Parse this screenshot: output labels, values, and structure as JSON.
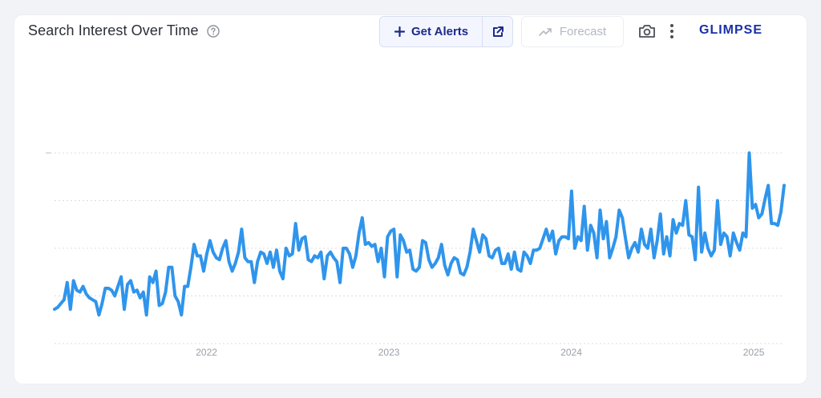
{
  "header": {
    "title": "Search Interest Over Time",
    "get_alerts_label": "Get Alerts",
    "forecast_label": "Forecast",
    "brand": "GLIMPSE"
  },
  "icons": {
    "help": "help-circle-icon",
    "plus": "plus-icon",
    "external": "external-link-icon",
    "forecast": "trend-up-icon",
    "camera": "camera-icon",
    "more": "more-vertical-icon"
  },
  "colors": {
    "line": "#2f95ec",
    "accent": "#1c2a8a",
    "brand": "#1a2fa8"
  },
  "chart_data": {
    "type": "line",
    "x_ticks": [
      "2022",
      "2023",
      "2024",
      "2025"
    ],
    "x_range": [
      "2021-03",
      "2025-03"
    ],
    "ylim": [
      0,
      100
    ],
    "grid": true,
    "series": [
      {
        "values": [
          18,
          19,
          21,
          23,
          32,
          18,
          33,
          28,
          27,
          30,
          26,
          24,
          23,
          22,
          15,
          21,
          29,
          29,
          28,
          25,
          30,
          35,
          18,
          31,
          33,
          27,
          28,
          24,
          27,
          15,
          35,
          32,
          38,
          20,
          21,
          27,
          40,
          40,
          25,
          22,
          15,
          30,
          30,
          40,
          52,
          46,
          46,
          38,
          47,
          54,
          48,
          45,
          44,
          50,
          54,
          43,
          38,
          42,
          48,
          60,
          45,
          43,
          43,
          32,
          43,
          48,
          47,
          42,
          48,
          40,
          49,
          38,
          34,
          50,
          46,
          47,
          63,
          49,
          55,
          56,
          44,
          43,
          46,
          45,
          48,
          34,
          46,
          48,
          45,
          43,
          32,
          50,
          50,
          47,
          40,
          46,
          58,
          66,
          52,
          53,
          51,
          52,
          43,
          50,
          35,
          56,
          59,
          60,
          35,
          57,
          54,
          48,
          49,
          39,
          38,
          40,
          54,
          53,
          44,
          40,
          42,
          45,
          52,
          41,
          36,
          42,
          45,
          44,
          37,
          36,
          40,
          48,
          60,
          54,
          48,
          57,
          55,
          46,
          45,
          49,
          50,
          42,
          42,
          47,
          39,
          48,
          39,
          38,
          48,
          46,
          42,
          49,
          49,
          50,
          55,
          60,
          54,
          59,
          47,
          54,
          56,
          56,
          55,
          80,
          50,
          56,
          54,
          72,
          49,
          62,
          58,
          45,
          70,
          55,
          64,
          45,
          50,
          56,
          70,
          66,
          55,
          45,
          50,
          53,
          48,
          60,
          52,
          50,
          60,
          45,
          54,
          68,
          47,
          56,
          46,
          65,
          58,
          63,
          62,
          75,
          57,
          56,
          44,
          82,
          48,
          58,
          50,
          46,
          49,
          75,
          52,
          58,
          56,
          46,
          58,
          53,
          49,
          58,
          56,
          100,
          71,
          73,
          66,
          68,
          76,
          83,
          63,
          63,
          62,
          69,
          83
        ]
      }
    ]
  }
}
